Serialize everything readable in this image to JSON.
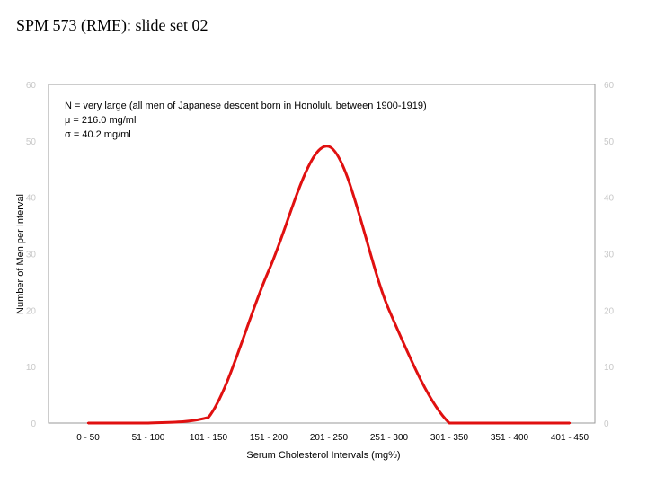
{
  "slide": {
    "title": "SPM 573 (RME): slide set 02"
  },
  "chart_data": {
    "type": "line",
    "title": "",
    "xlabel": "Serum Cholesterol Intervals (mg%)",
    "ylabel": "Number of Men per Interval",
    "categories": [
      "0 - 50",
      "51 - 100",
      "101 - 150",
      "151 - 200",
      "201 - 250",
      "251 - 300",
      "301 - 350",
      "351 - 400",
      "401 - 450"
    ],
    "series": [
      {
        "values": [
          0,
          0,
          1,
          27,
          49,
          20,
          0,
          0,
          0
        ],
        "color": "#e01010"
      }
    ],
    "ylim": [
      0,
      60
    ],
    "yticks": [
      "0",
      "10",
      "20",
      "30",
      "40",
      "50",
      "60"
    ],
    "annotations": [
      "N = very large (all men of Japanese descent born in Honolulu between 1900-1919)",
      "μ = 216.0 mg/ml",
      "σ = 40.2 mg/ml"
    ],
    "grid": false
  }
}
